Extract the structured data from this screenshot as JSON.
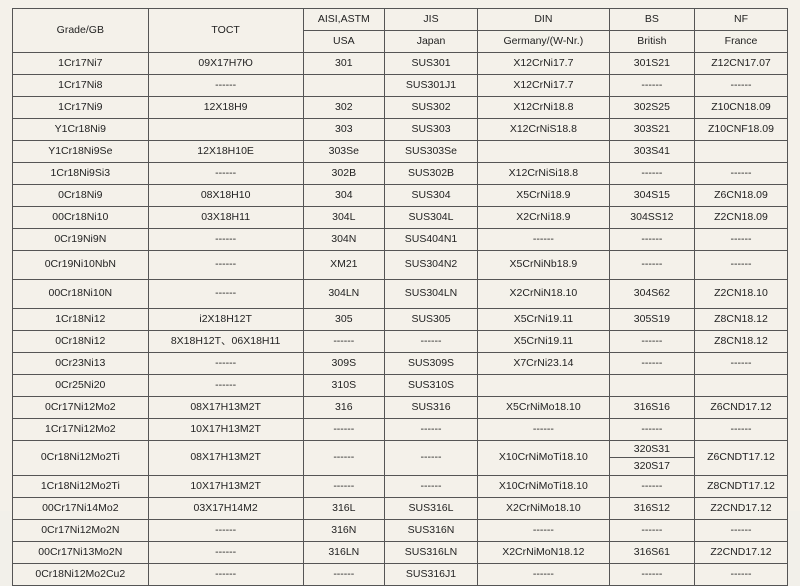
{
  "table": {
    "type": "table",
    "background_color": "#f4f1ea",
    "border_color": "#555555",
    "text_color": "#222222",
    "font_size_pt": 8,
    "em_dash": "------",
    "columns": [
      {
        "key": "grade",
        "header_top": "Grade/GB",
        "header_sub": "",
        "width_pct": 17.5,
        "align": "center"
      },
      {
        "key": "toct",
        "header_top": "TOCT",
        "header_sub": "",
        "width_pct": 20,
        "align": "center"
      },
      {
        "key": "aisi",
        "header_top": "AISI,ASTM",
        "header_sub": "USA",
        "width_pct": 10.5,
        "align": "center"
      },
      {
        "key": "jis",
        "header_top": "JIS",
        "header_sub": "Japan",
        "width_pct": 12,
        "align": "center"
      },
      {
        "key": "din",
        "header_top": "DIN",
        "header_sub": "Germany/(W-Nr.)",
        "width_pct": 17,
        "align": "center"
      },
      {
        "key": "bs",
        "header_top": "BS",
        "header_sub": "British",
        "width_pct": 11,
        "align": "center"
      },
      {
        "key": "nf",
        "header_top": "NF",
        "header_sub": "France",
        "width_pct": 12,
        "align": "center"
      }
    ],
    "rows": [
      {
        "grade": "1Cr17Ni7",
        "toct": "09X17H7Ю",
        "aisi": "301",
        "jis": "SUS301",
        "din": "X12CrNi17.7",
        "bs": "301S21",
        "nf": "Z12CN17.07"
      },
      {
        "grade": "1Cr17Ni8",
        "toct": "------",
        "aisi": "",
        "jis": "SUS301J1",
        "din": "X12CrNi17.7",
        "bs": "------",
        "nf": "------"
      },
      {
        "grade": "1Cr17Ni9",
        "toct": "12X18H9",
        "aisi": "302",
        "jis": "SUS302",
        "din": "X12CrNi18.8",
        "bs": "302S25",
        "nf": "Z10CN18.09"
      },
      {
        "grade": "Y1Cr18Ni9",
        "toct": "",
        "aisi": "303",
        "jis": "SUS303",
        "din": "X12CrNiS18.8",
        "bs": "303S21",
        "nf": "Z10CNF18.09"
      },
      {
        "grade": "Y1Cr18Ni9Se",
        "toct": "12X18H10E",
        "aisi": "303Se",
        "jis": "SUS303Se",
        "din": "",
        "bs": "303S41",
        "nf": ""
      },
      {
        "grade": "1Cr18Ni9Si3",
        "toct": "------",
        "aisi": "302B",
        "jis": "SUS302B",
        "din": "X12CrNiSi18.8",
        "bs": "------",
        "nf": "------"
      },
      {
        "grade": "0Cr18Ni9",
        "toct": "08X18H10",
        "aisi": "304",
        "jis": "SUS304",
        "din": "X5CrNi18.9",
        "bs": "304S15",
        "nf": "Z6CN18.09"
      },
      {
        "grade": "00Cr18Ni10",
        "toct": "03X18H11",
        "aisi": "304L",
        "jis": "SUS304L",
        "din": "X2CrNi18.9",
        "bs": "304SS12",
        "nf": "Z2CN18.09"
      },
      {
        "grade": "0Cr19Ni9N",
        "toct": "------",
        "aisi": "304N",
        "jis": "SUS404N1",
        "din": "------",
        "bs": "------",
        "nf": "------"
      },
      {
        "grade": "0Cr19Ni10NbN",
        "toct": "------",
        "aisi": "XM21",
        "jis": "SUS304N2",
        "din": "X5CrNiNb18.9",
        "bs": "------",
        "nf": "------",
        "tall": true
      },
      {
        "grade": "00Cr18Ni10N",
        "toct": "------",
        "aisi": "304LN",
        "jis": "SUS304LN",
        "din": "X2CrNiN18.10",
        "bs": "304S62",
        "nf": "Z2CN18.10",
        "tall": true
      },
      {
        "grade": "1Cr18Ni12",
        "toct": "i2X18H12T",
        "aisi": "305",
        "jis": "SUS305",
        "din": "X5CrNi19.11",
        "bs": "305S19",
        "nf": "Z8CN18.12"
      },
      {
        "grade": "0Cr18Ni12",
        "toct": "8X18H12T、06X18H11",
        "aisi": "------",
        "jis": "------",
        "din": "X5CrNi19.11",
        "bs": "------",
        "nf": "Z8CN18.12"
      },
      {
        "grade": "0Cr23Ni13",
        "toct": "------",
        "aisi": "309S",
        "jis": "SUS309S",
        "din": "X7CrNi23.14",
        "bs": "------",
        "nf": "------"
      },
      {
        "grade": "0Cr25Ni20",
        "toct": "------",
        "aisi": "310S",
        "jis": "SUS310S",
        "din": "",
        "bs": "",
        "nf": ""
      },
      {
        "grade": "0Cr17Ni12Mo2",
        "toct": "08X17H13M2T",
        "aisi": "316",
        "jis": "SUS316",
        "din": "X5CrNiMo18.10",
        "bs": "316S16",
        "nf": "Z6CND17.12"
      },
      {
        "grade": "1Cr17Ni12Mo2",
        "toct": "10X17H13M2T",
        "aisi": "------",
        "jis": "------",
        "din": "------",
        "bs": "------",
        "nf": "------"
      },
      {
        "grade": "0Cr18Ni12Mo2Ti",
        "toct": "08X17H13M2T",
        "aisi": "------",
        "jis": "------",
        "din": "X10CrNiMoTi18.10",
        "bs_split": [
          "320S31",
          "320S17"
        ],
        "nf": "Z6CNDT17.12",
        "split_bs": true
      },
      {
        "grade": "1Cr18Ni12Mo2Ti",
        "toct": "10X17H13M2T",
        "aisi": "------",
        "jis": "------",
        "din": "X10CrNiMoTi18.10",
        "bs": "------",
        "nf": "Z8CNDT17.12"
      },
      {
        "grade": "00Cr17Ni14Mo2",
        "toct": "03X17H14M2",
        "aisi": "316L",
        "jis": "SUS316L",
        "din": "X2CrNiMo18.10",
        "bs": "316S12",
        "nf": "Z2CND17.12"
      },
      {
        "grade": "0Cr17Ni12Mo2N",
        "toct": "------",
        "aisi": "316N",
        "jis": "SUS316N",
        "din": "------",
        "bs": "------",
        "nf": "------"
      },
      {
        "grade": "00Cr17Ni13Mo2N",
        "toct": "------",
        "aisi": "316LN",
        "jis": "SUS316LN",
        "din": "X2CrNiMoN18.12",
        "bs": "316S61",
        "nf": "Z2CND17.12"
      },
      {
        "grade": "0Cr18Ni12Mo2Cu2",
        "toct": "------",
        "aisi": "------",
        "jis": "SUS316J1",
        "din": "------",
        "bs": "------",
        "nf": "------"
      }
    ]
  }
}
